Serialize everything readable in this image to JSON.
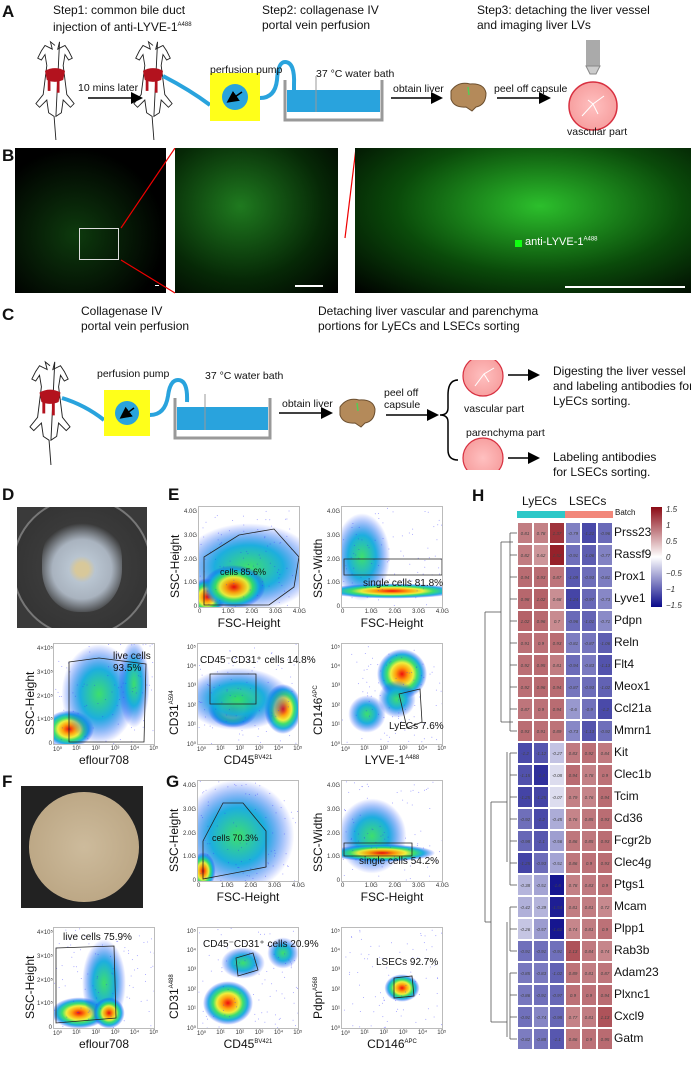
{
  "panels": {
    "A": "A",
    "B": "B",
    "C": "C",
    "D": "D",
    "E": "E",
    "F": "F",
    "G": "G",
    "H": "H"
  },
  "panelA": {
    "step1": "Step1: common bile duct",
    "step1b": "injection of anti-LYVE-1",
    "step1_sup": "A488",
    "step2": "Step2: collagenase IV",
    "step2b": "portal vein perfusion",
    "step3": "Step3: detaching the liver vessel",
    "step3b": "and imaging liver LVs",
    "later": "10 mins later",
    "pump": "perfusion pump",
    "bath": "37 °C water bath",
    "obtain": "obtain liver",
    "peel": "peel off  capsule",
    "vascular": "vascular  part"
  },
  "panelB": {
    "legend": "anti-LYVE-1",
    "legend_sup": "A488"
  },
  "panelC": {
    "title1": "Collagenase IV",
    "title1b": "portal vein perfusion",
    "title2": "Detaching liver vascular and parenchyma",
    "title2b": "portions for LyECs and LSECs sorting",
    "pump": "perfusion pump",
    "bath": "37 °C water bath",
    "obtain": "obtain liver",
    "peel": "peel off",
    "peel2": "capsule",
    "vascular": "vascular  part",
    "parenchyma": "parenchyma part",
    "out1a": "Digesting the liver vessel",
    "out1b": "and labeling antibodies for",
    "out1c": "LyECs sorting.",
    "out2a": "Labeling antibodies",
    "out2b": "for LSECs sorting."
  },
  "flow": {
    "lin_ticks": [
      "0",
      "1.0G",
      "2.0G",
      "3.0G",
      "4.0G"
    ],
    "log_ticks": [
      "10⁰",
      "10¹",
      "10²",
      "10³",
      "10⁴",
      "10⁵"
    ],
    "ssc_ticks": [
      "0",
      "1×10⁵",
      "2×10⁵",
      "3×10⁵",
      "4×10⁵"
    ],
    "plots": [
      {
        "id": "D1",
        "x": "eflour708",
        "y": "SSC-Height",
        "gate": "live cells",
        "gate2": "93.5%"
      },
      {
        "id": "E1",
        "x": "FSC-Height",
        "y": "SSC-Height",
        "gate": "cells 85.6%"
      },
      {
        "id": "E2",
        "x": "FSC-Height",
        "y": "SSC-Width",
        "gate": "single cells 81.8%"
      },
      {
        "id": "E3",
        "x": "CD45",
        "xs": "BV421",
        "y": "CD31",
        "ys": "A594",
        "gate": "CD45⁻CD31⁺ cells 14.8%"
      },
      {
        "id": "E4",
        "x": "LYVE-1",
        "xs": "A488",
        "y": "CD146",
        "ys": "APC",
        "gate": "LyECs 7.6%"
      },
      {
        "id": "F1",
        "x": "eflour708",
        "y": "SSC-Height",
        "gate": "live cells 75.9%"
      },
      {
        "id": "G1",
        "x": "FSC-Height",
        "y": "SSC-Height",
        "gate": "cells 70.3%"
      },
      {
        "id": "G2",
        "x": "FSC-Height",
        "y": "SSC-Width",
        "gate": "single cells 54.2%"
      },
      {
        "id": "G3",
        "x": "CD45",
        "xs": "BV421",
        "y": "CD31",
        "ys": "A488",
        "gate": "CD45⁻CD31⁺ cells 20.9%"
      },
      {
        "id": "G4",
        "x": "CD146",
        "xs": "APC",
        "y": "Pdpn",
        "ys": "A568",
        "gate": "LSECs 92.7%"
      }
    ]
  },
  "heatmap": {
    "groups": [
      "LyECs",
      "LSECs"
    ],
    "batch_label": "Batch",
    "group_colors": [
      "#2ec8c8",
      "#f2877a"
    ],
    "colorbar_ticks": [
      "1.5",
      "1",
      "0.5",
      "0",
      "−0.5",
      "−1",
      "−1.5"
    ],
    "colors": {
      "high": "#8b0a14",
      "mid": "#ffffff",
      "low": "#0a0a8a"
    },
    "genes": [
      "Prss23",
      "Rassf9",
      "Prox1",
      "Lyve1",
      "Pdpn",
      "Reln",
      "Flt4",
      "Meox1",
      "Ccl21a",
      "Mmrn1",
      "Kit",
      "Clec1b",
      "Tcim",
      "Cd36",
      "Fcgr2b",
      "Clec4g",
      "Ptgs1",
      "Mcam",
      "Plpp1",
      "Rab3b",
      "Adam23",
      "Plxnc1",
      "Cxcl9",
      "Gatm"
    ],
    "values": [
      [
        0.81,
        0.78,
        1.37,
        -0.79,
        -1.21,
        -0.96
      ],
      [
        0.82,
        0.62,
        1.52,
        -0.91,
        -1.06,
        -0.77
      ],
      [
        0.94,
        0.93,
        0.87,
        -1.09,
        -0.93,
        -0.81
      ],
      [
        0.98,
        1.02,
        0.68,
        -1.24,
        -0.97,
        -0.73
      ],
      [
        1.02,
        0.96,
        0.7,
        -0.96,
        -1.01,
        -0.71
      ],
      [
        0.91,
        0.9,
        0.93,
        -0.81,
        -0.87,
        -1.06
      ],
      [
        0.92,
        0.95,
        0.81,
        -0.94,
        -0.83,
        -1.13
      ],
      [
        0.92,
        0.96,
        0.94,
        -0.87,
        -0.93,
        -1.02
      ],
      [
        0.87,
        0.9,
        0.94,
        -0.6,
        -0.9,
        -1.2
      ],
      [
        0.93,
        0.91,
        0.89,
        -0.73,
        -1.13,
        -0.92
      ],
      [
        -1.2,
        -1.12,
        -0.27,
        0.83,
        0.92,
        0.84
      ],
      [
        -1.15,
        -1.4,
        -0.08,
        0.94,
        0.78,
        0.9
      ],
      [
        -1.25,
        -1.25,
        -0.07,
        0.79,
        0.76,
        0.94
      ],
      [
        -0.92,
        -1.2,
        -0.45,
        0.76,
        0.85,
        0.93
      ],
      [
        -0.98,
        -1.1,
        -0.56,
        0.86,
        0.85,
        0.93
      ],
      [
        -1.25,
        -0.93,
        -0.51,
        0.86,
        0.9,
        0.93
      ],
      [
        -0.38,
        -0.51,
        -1.6,
        0.78,
        0.83,
        0.9
      ],
      [
        -0.42,
        -0.39,
        -1.54,
        0.81,
        0.81,
        0.72
      ],
      [
        -0.26,
        -0.57,
        -1.61,
        0.74,
        0.81,
        0.9
      ],
      [
        -0.91,
        -0.91,
        -0.91,
        1.13,
        0.84,
        0.74
      ],
      [
        -0.85,
        -0.83,
        -1.02,
        0.89,
        0.81,
        0.87
      ],
      [
        -0.86,
        -0.91,
        -0.97,
        0.9,
        0.9,
        0.94
      ],
      [
        -0.91,
        -0.74,
        -0.98,
        0.77,
        0.81,
        1.13
      ],
      [
        -0.82,
        -0.88,
        -1.1,
        0.86,
        0.9,
        0.95
      ]
    ]
  }
}
